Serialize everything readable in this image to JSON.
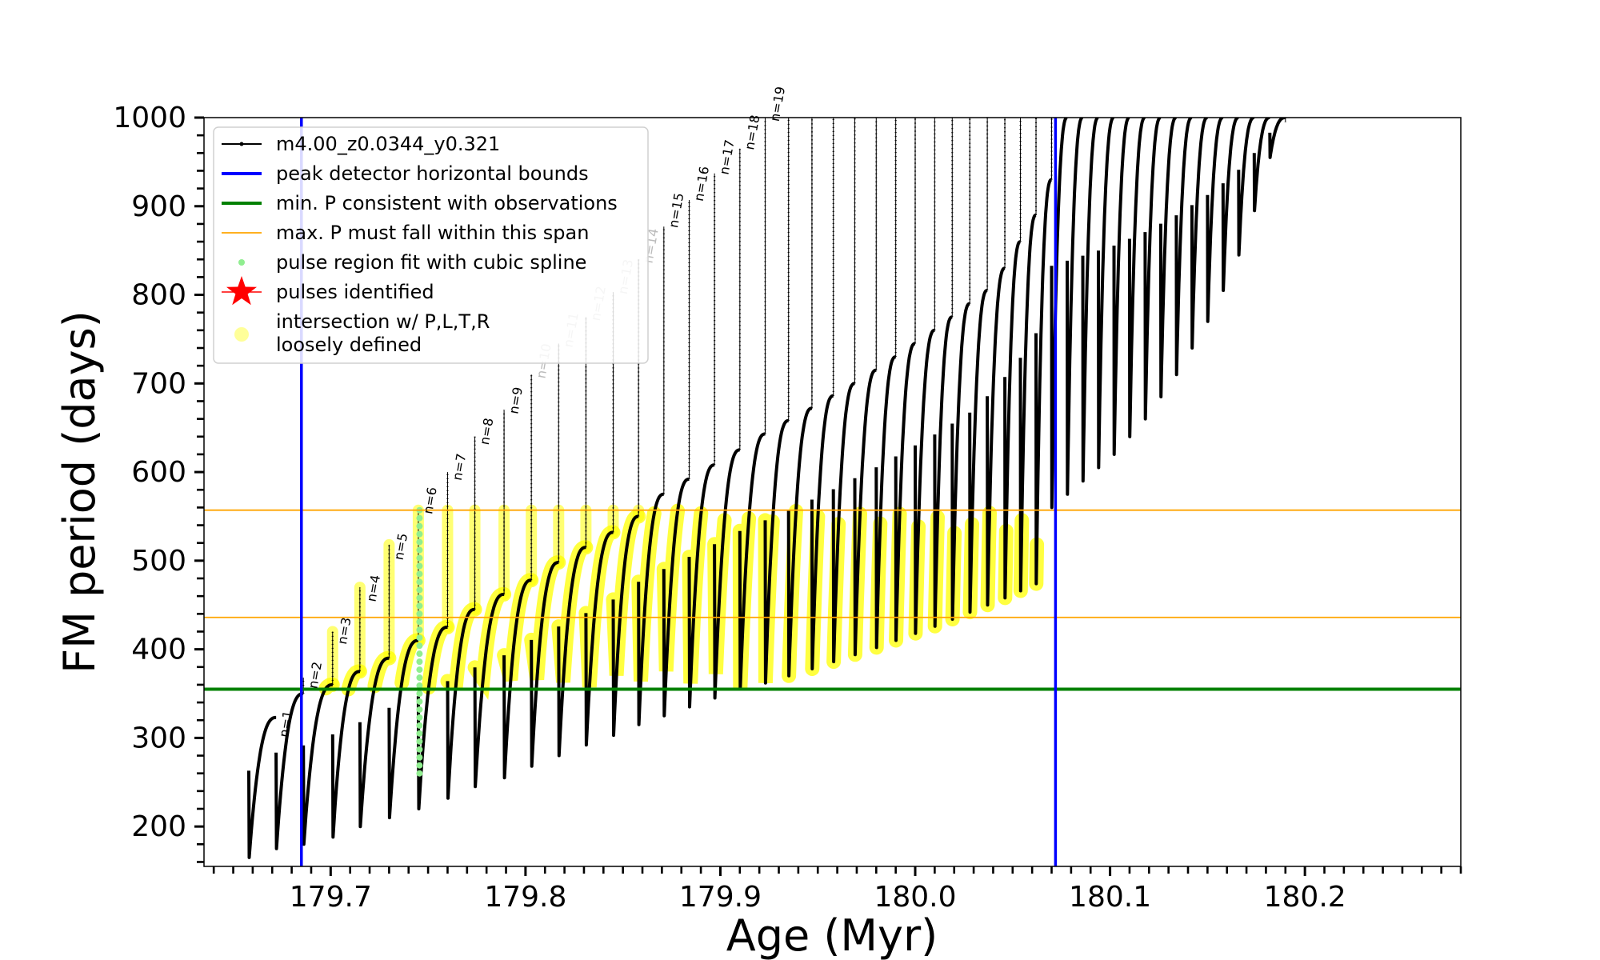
{
  "chart_data": {
    "type": "line",
    "xlabel": "Age (Myr)",
    "ylabel": "FM period (days)",
    "xlim": [
      179.635,
      180.28
    ],
    "ylim": [
      155,
      1000
    ],
    "x_ticks": [
      179.7,
      179.8,
      179.9,
      180.0,
      180.1,
      180.2
    ],
    "x_tick_labels": [
      "179.7",
      "179.8",
      "179.9",
      "180.0",
      "180.1",
      "180.2"
    ],
    "y_ticks": [
      200,
      300,
      400,
      500,
      600,
      700,
      800,
      900,
      1000
    ],
    "y_tick_labels": [
      "200",
      "300",
      "400",
      "500",
      "600",
      "700",
      "800",
      "900",
      "1000"
    ],
    "x_minor_step": 0.01,
    "y_minor_step": 20,
    "grid": false,
    "legend_position": "top-left",
    "colors": {
      "track": "#000000",
      "peak_bounds": "#0000ff",
      "min_period": "#008000",
      "max_span": "#ffa500",
      "spline": "#90ee90",
      "pulses": "#ff0000",
      "intersection": "#ffff00"
    },
    "legend": [
      {
        "label": "m4.00_z0.0344_y0.321",
        "marker": "line-dot",
        "color": "#000000"
      },
      {
        "label": "peak detector horizontal bounds",
        "marker": "line",
        "color": "#0000ff"
      },
      {
        "label": "min. P consistent with observations",
        "marker": "line",
        "color": "#008000"
      },
      {
        "label": "max. P must fall within this span",
        "marker": "thin-line",
        "color": "#ffa500"
      },
      {
        "label": "pulse region fit with cubic spline",
        "marker": "dot",
        "color": "#90ee90"
      },
      {
        "label": "pulses identified",
        "marker": "star",
        "color": "#ff0000"
      },
      {
        "label": "intersection w/ P,L,T,R",
        "label2": "loosely defined",
        "marker": "big-dot",
        "color": "#ffff00"
      }
    ],
    "vertical_lines": [
      179.685,
      180.072
    ],
    "min_period": 355,
    "max_span": [
      436,
      557
    ],
    "series": [
      {
        "name": "m4.00_z0.0344_y0.321",
        "pulses": [
          {
            "n": 1,
            "t_start": 179.658,
            "t_end": 179.672,
            "p_min": 165,
            "p_max": 323,
            "spike": 323
          },
          {
            "n": 2,
            "t_start": 179.672,
            "t_end": 179.686,
            "p_min": 175,
            "p_max": 350,
            "spike": 368
          },
          {
            "n": 3,
            "t_start": 179.686,
            "t_end": 179.701,
            "p_min": 180,
            "p_max": 360,
            "spike": 420
          },
          {
            "n": 4,
            "t_start": 179.701,
            "t_end": 179.715,
            "p_min": 188,
            "p_max": 375,
            "spike": 470
          },
          {
            "n": 5,
            "t_start": 179.715,
            "t_end": 179.73,
            "p_min": 200,
            "p_max": 390,
            "spike": 518
          },
          {
            "n": 6,
            "t_start": 179.73,
            "t_end": 179.745,
            "p_min": 210,
            "p_max": 410,
            "spike": 558
          },
          {
            "n": 7,
            "t_start": 179.745,
            "t_end": 179.76,
            "p_min": 220,
            "p_max": 425,
            "spike": 600
          },
          {
            "n": 8,
            "t_start": 179.76,
            "t_end": 179.774,
            "p_min": 232,
            "p_max": 445,
            "spike": 640
          },
          {
            "n": 9,
            "t_start": 179.774,
            "t_end": 179.789,
            "p_min": 245,
            "p_max": 462,
            "spike": 670
          },
          {
            "n": 10,
            "t_start": 179.789,
            "t_end": 179.803,
            "p_min": 255,
            "p_max": 478,
            "spike": 710
          },
          {
            "n": 11,
            "t_start": 179.803,
            "t_end": 179.817,
            "p_min": 268,
            "p_max": 498,
            "spike": 745
          },
          {
            "n": 12,
            "t_start": 179.817,
            "t_end": 179.831,
            "p_min": 280,
            "p_max": 515,
            "spike": 775
          },
          {
            "n": 13,
            "t_start": 179.831,
            "t_end": 179.845,
            "p_min": 292,
            "p_max": 532,
            "spike": 803
          },
          {
            "n": 14,
            "t_start": 179.845,
            "t_end": 179.858,
            "p_min": 303,
            "p_max": 550,
            "spike": 840
          },
          {
            "n": 15,
            "t_start": 179.858,
            "t_end": 179.871,
            "p_min": 315,
            "p_max": 575,
            "spike": 877
          },
          {
            "n": 16,
            "t_start": 179.871,
            "t_end": 179.884,
            "p_min": 325,
            "p_max": 592,
            "spike": 907
          },
          {
            "n": 17,
            "t_start": 179.884,
            "t_end": 179.897,
            "p_min": 335,
            "p_max": 608,
            "spike": 937
          },
          {
            "n": 18,
            "t_start": 179.897,
            "t_end": 179.91,
            "p_min": 345,
            "p_max": 625,
            "spike": 965
          },
          {
            "n": 19,
            "t_start": 179.91,
            "t_end": 179.923,
            "p_min": 355,
            "p_max": 643,
            "spike": 1000
          },
          {
            "t_start": 179.923,
            "t_end": 179.935,
            "p_min": 362,
            "p_max": 658,
            "spike": 1000
          },
          {
            "t_start": 179.935,
            "t_end": 179.947,
            "p_min": 370,
            "p_max": 672,
            "spike": 1000
          },
          {
            "t_start": 179.947,
            "t_end": 179.958,
            "p_min": 378,
            "p_max": 686,
            "spike": 1000
          },
          {
            "t_start": 179.958,
            "t_end": 179.969,
            "p_min": 386,
            "p_max": 700,
            "spike": 1000
          },
          {
            "t_start": 179.969,
            "t_end": 179.98,
            "p_min": 394,
            "p_max": 715,
            "spike": 1000
          },
          {
            "t_start": 179.98,
            "t_end": 179.99,
            "p_min": 402,
            "p_max": 730,
            "spike": 1000
          },
          {
            "t_start": 179.99,
            "t_end": 180.0,
            "p_min": 410,
            "p_max": 745,
            "spike": 1000
          },
          {
            "t_start": 180.0,
            "t_end": 180.01,
            "p_min": 418,
            "p_max": 760,
            "spike": 1000
          },
          {
            "t_start": 180.01,
            "t_end": 180.019,
            "p_min": 426,
            "p_max": 775,
            "spike": 1000
          },
          {
            "t_start": 180.019,
            "t_end": 180.028,
            "p_min": 434,
            "p_max": 790,
            "spike": 1000
          },
          {
            "t_start": 180.028,
            "t_end": 180.037,
            "p_min": 442,
            "p_max": 805,
            "spike": 1000
          },
          {
            "t_start": 180.037,
            "t_end": 180.046,
            "p_min": 450,
            "p_max": 830,
            "spike": 1000
          },
          {
            "t_start": 180.046,
            "t_end": 180.054,
            "p_min": 458,
            "p_max": 860,
            "spike": 1000
          },
          {
            "t_start": 180.054,
            "t_end": 180.062,
            "p_min": 466,
            "p_max": 890,
            "spike": 1000
          },
          {
            "t_start": 180.062,
            "t_end": 180.07,
            "p_min": 474,
            "p_max": 930,
            "spike": 1000
          },
          {
            "t_start": 180.07,
            "t_end": 180.078,
            "p_min": 560,
            "p_max": 1000,
            "spike": 1000
          },
          {
            "t_start": 180.078,
            "t_end": 180.086,
            "p_min": 575,
            "p_max": 1000,
            "spike": 1000
          },
          {
            "t_start": 180.086,
            "t_end": 180.094,
            "p_min": 590,
            "p_max": 1000,
            "spike": 1000
          },
          {
            "t_start": 180.094,
            "t_end": 180.102,
            "p_min": 605,
            "p_max": 1000,
            "spike": 1000
          },
          {
            "t_start": 180.102,
            "t_end": 180.11,
            "p_min": 620,
            "p_max": 1000,
            "spike": 1000
          },
          {
            "t_start": 180.11,
            "t_end": 180.118,
            "p_min": 640,
            "p_max": 1000,
            "spike": 1000
          },
          {
            "t_start": 180.118,
            "t_end": 180.126,
            "p_min": 660,
            "p_max": 1000,
            "spike": 1000
          },
          {
            "t_start": 180.126,
            "t_end": 180.134,
            "p_min": 685,
            "p_max": 1000,
            "spike": 1000
          },
          {
            "t_start": 180.134,
            "t_end": 180.142,
            "p_min": 710,
            "p_max": 1000,
            "spike": 1000
          },
          {
            "t_start": 180.142,
            "t_end": 180.15,
            "p_min": 740,
            "p_max": 1000,
            "spike": 1000
          },
          {
            "t_start": 180.15,
            "t_end": 180.158,
            "p_min": 770,
            "p_max": 1000,
            "spike": 1000
          },
          {
            "t_start": 180.158,
            "t_end": 180.166,
            "p_min": 805,
            "p_max": 1000,
            "spike": 1000
          },
          {
            "t_start": 180.166,
            "t_end": 180.174,
            "p_min": 845,
            "p_max": 1000,
            "spike": 1000
          },
          {
            "t_start": 180.174,
            "t_end": 180.182,
            "p_min": 895,
            "p_max": 1000,
            "spike": 1000
          },
          {
            "t_start": 180.182,
            "t_end": 180.19,
            "p_min": 955,
            "p_max": 1000,
            "spike": 995
          }
        ]
      }
    ],
    "pulse_labels": [
      {
        "text": "n=1",
        "x": 179.678,
        "y": 300,
        "color": "#000000"
      },
      {
        "text": "n=2",
        "x": 179.693,
        "y": 355,
        "color": "#000000"
      },
      {
        "text": "n=3",
        "x": 179.708,
        "y": 405,
        "color": "#000000"
      },
      {
        "text": "n=4",
        "x": 179.723,
        "y": 453,
        "color": "#000000"
      },
      {
        "text": "n=5",
        "x": 179.737,
        "y": 500,
        "color": "#000000"
      },
      {
        "text": "n=6",
        "x": 179.752,
        "y": 552,
        "color": "#000000"
      },
      {
        "text": "n=7",
        "x": 179.767,
        "y": 590,
        "color": "#000000"
      },
      {
        "text": "n=8",
        "x": 179.781,
        "y": 630,
        "color": "#000000"
      },
      {
        "text": "n=9",
        "x": 179.796,
        "y": 665,
        "color": "#000000"
      },
      {
        "text": "n=10",
        "x": 179.81,
        "y": 705,
        "color": "#bbbbbb"
      },
      {
        "text": "n=11",
        "x": 179.824,
        "y": 740,
        "color": "#bbbbbb"
      },
      {
        "text": "n=12",
        "x": 179.838,
        "y": 770,
        "color": "#bbbbbb"
      },
      {
        "text": "n=13",
        "x": 179.852,
        "y": 800,
        "color": "#bbbbbb"
      },
      {
        "text": "n=14",
        "x": 179.865,
        "y": 835,
        "color": "#bbbbbb"
      },
      {
        "text": "n=15",
        "x": 179.878,
        "y": 875,
        "color": "#000000"
      },
      {
        "text": "n=16",
        "x": 179.891,
        "y": 905,
        "color": "#000000"
      },
      {
        "text": "n=17",
        "x": 179.904,
        "y": 935,
        "color": "#000000"
      },
      {
        "text": "n=18",
        "x": 179.917,
        "y": 963,
        "color": "#000000"
      },
      {
        "text": "n=19",
        "x": 179.93,
        "y": 995,
        "color": "#000000"
      }
    ],
    "spline_pulse_index": 6
  }
}
